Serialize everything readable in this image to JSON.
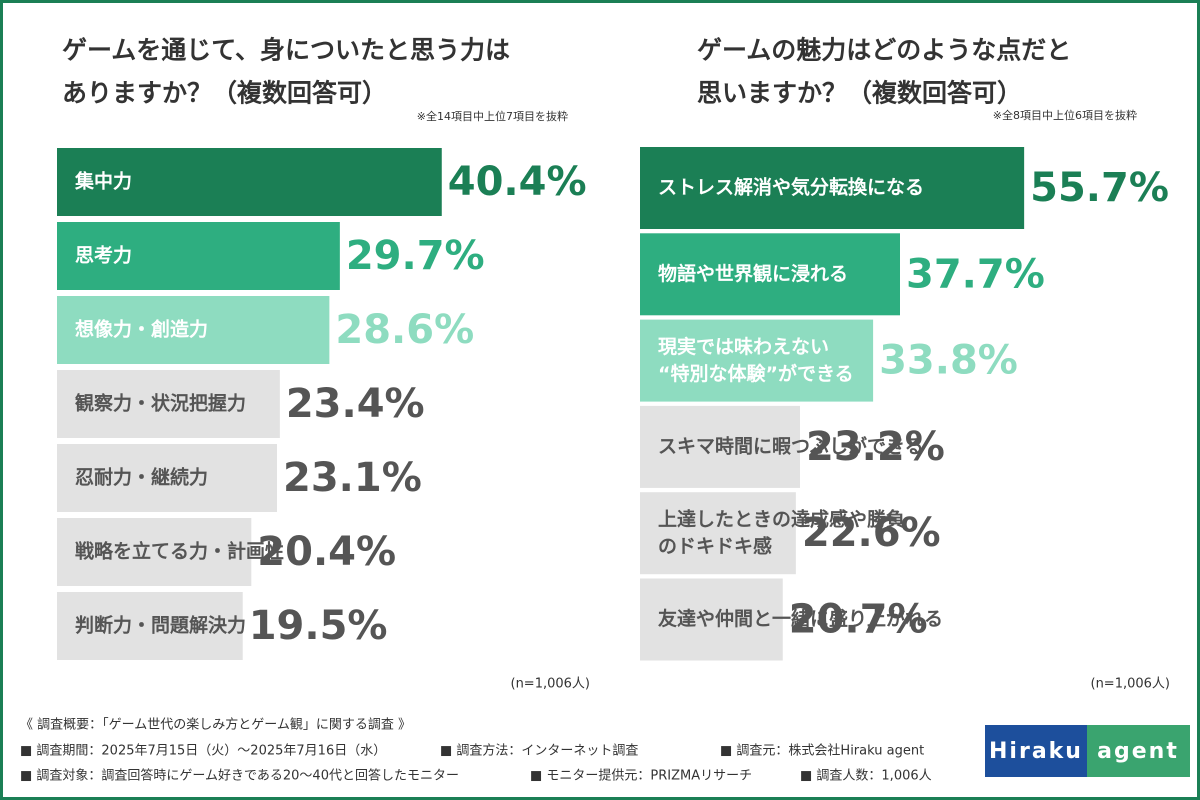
{
  "chart_data": [
    {
      "type": "bar",
      "orientation": "horizontal",
      "title": "ゲームを通じて、身についたと思う力は\nありますか？（複数回答可）",
      "note": "※全14項目中上位7項目を抜粋",
      "categories": [
        "集中力",
        "思考力",
        "想像力・創造力",
        "観察力・状況把握力",
        "忍耐力・継続力",
        "戦略を立てる力・計画性",
        "判断力・問題解決力"
      ],
      "values": [
        40.4,
        29.7,
        28.6,
        23.4,
        23.1,
        20.4,
        19.5
      ],
      "value_labels": [
        "40.4%",
        "29.7%",
        "28.6%",
        "23.4%",
        "23.1%",
        "20.4%",
        "19.5%"
      ],
      "colors": [
        "#1b7f55",
        "#2eae80",
        "#8edcc0",
        "#e2e2e2",
        "#e2e2e2",
        "#e2e2e2",
        "#e2e2e2"
      ],
      "label_colors": [
        "#1b7f55",
        "#2eae80",
        "#8edcc0",
        "#555555",
        "#555555",
        "#555555",
        "#555555"
      ],
      "xlim": [
        0,
        42
      ],
      "sample": "(n=1,006人)"
    },
    {
      "type": "bar",
      "orientation": "horizontal",
      "title": "ゲームの魅力はどのような点だと\n思いますか？（複数回答可）",
      "note": "※全8項目中上位6項目を抜粋",
      "categories": [
        "ストレス解消や気分転換になる",
        "物語や世界観に浸れる",
        "現実では味わえない\n“特別な体験”ができる",
        "スキマ時間に暇つぶしができる",
        "上達したときの達成感や勝負\nのドキドキ感",
        "友達や仲間と一緒に盛り上がれる"
      ],
      "values": [
        55.7,
        37.7,
        33.8,
        23.2,
        22.6,
        20.7
      ],
      "value_labels": [
        "55.7%",
        "37.7%",
        "33.8%",
        "23.2%",
        "22.6%",
        "20.7%"
      ],
      "colors": [
        "#1b7f55",
        "#2eae80",
        "#8edcc0",
        "#e2e2e2",
        "#e2e2e2",
        "#e2e2e2"
      ],
      "label_colors": [
        "#1b7f55",
        "#2eae80",
        "#8edcc0",
        "#555555",
        "#555555",
        "#555555"
      ],
      "xlim": [
        0,
        58
      ],
      "sample": "(n=1,006人)"
    }
  ],
  "footer": {
    "title": "《 調査概要：「ゲーム世代の楽しみ方とゲーム観」に関する調査 》",
    "items": [
      "■ 調査期間：2025年7月15日（火）〜2025年7月16日（水）",
      "■ 調査方法：インターネット調査",
      "■ 調査元：株式会社Hiraku agent",
      "■ 調査対象：調査回答時にゲーム好きである20〜40代と回答したモニター",
      "■ モニター提供元：PRIZMAリサーチ",
      "■ 調査人数：1,006人"
    ]
  },
  "logo": {
    "left": "Hiraku",
    "right": "agent"
  }
}
